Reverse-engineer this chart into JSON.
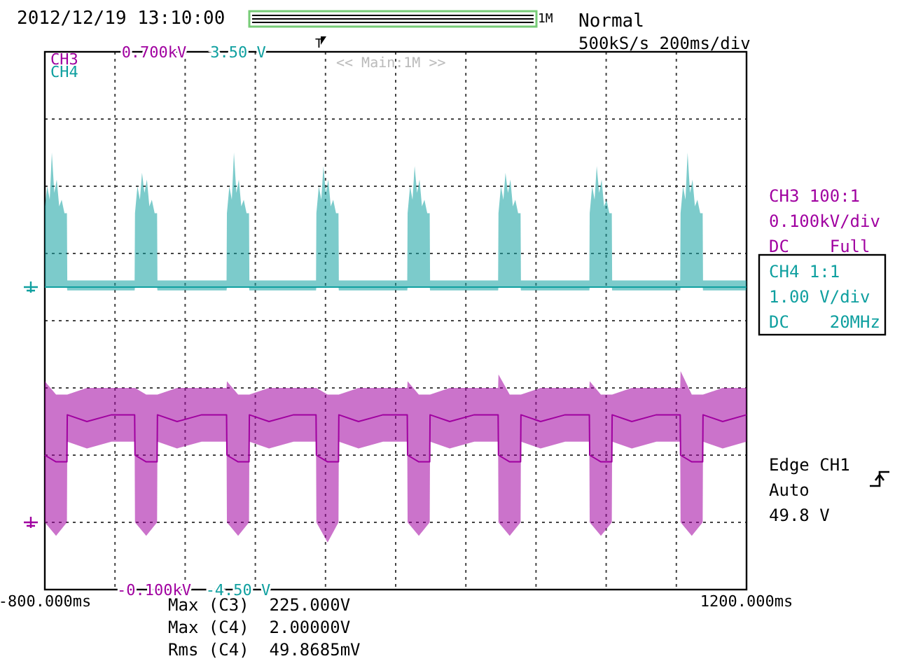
{
  "chart_data": {
    "type": "line",
    "xlim": [
      -800,
      1200
    ],
    "xticks": [
      {
        "value": -800,
        "label": "-800.000ms"
      },
      {
        "value": -600,
        "label": null
      },
      {
        "value": -400,
        "label": null
      },
      {
        "value": -200,
        "label": null
      },
      {
        "value": 0,
        "label": null
      },
      {
        "value": 200,
        "label": null
      },
      {
        "value": 400,
        "label": null
      },
      {
        "value": 600,
        "label": null
      },
      {
        "value": 800,
        "label": null
      },
      {
        "value": 1000,
        "label": null
      },
      {
        "value": 1200,
        "label": "1200.000ms"
      }
    ],
    "ylim": [
      -4.5,
      3.5
    ],
    "yticks": [
      {
        "value": -4.5,
        "label": "-4.50 V"
      },
      {
        "value": -3.5,
        "label": null
      },
      {
        "value": -2.5,
        "label": null
      },
      {
        "value": -1.5,
        "label": null
      },
      {
        "value": -0.5,
        "label": null
      },
      {
        "value": 0.5,
        "label": null
      },
      {
        "value": 1.5,
        "label": null
      },
      {
        "value": 2.5,
        "label": null
      },
      {
        "value": 3.5,
        "label": "3.50 V"
      }
    ],
    "y2lim": [
      -0.1,
      0.7
    ],
    "y2ticks": [
      {
        "value": -0.1,
        "label": "-0.100kV"
      },
      {
        "value": 0.7,
        "label": "0.700kV"
      }
    ],
    "grid": true,
    "legend": "top left",
    "marker": "none",
    "line_style": "solid",
    "series": [
      {
        "name": "CH3",
        "color": "#a000a0",
        "axis": "y2",
        "x": [
          -800,
          -768,
          -737,
          -736,
          -680,
          -610,
          -544,
          -543,
          -511,
          -480,
          -479,
          -423,
          -353,
          -282,
          -281,
          -249,
          -218,
          -217,
          -161,
          -91,
          -27,
          -26,
          6,
          37,
          38,
          94,
          164,
          233,
          234,
          266,
          297,
          298,
          354,
          424,
          492,
          493,
          525,
          556,
          557,
          613,
          683,
          752,
          753,
          785,
          816,
          817,
          873,
          943,
          1011,
          1012,
          1044,
          1075,
          1076,
          1132,
          1200
        ],
        "values": [
          0.1,
          0.09,
          0.09,
          0.16,
          0.15,
          0.16,
          0.16,
          0.1,
          0.09,
          0.09,
          0.16,
          0.15,
          0.16,
          0.16,
          0.1,
          0.09,
          0.09,
          0.16,
          0.15,
          0.16,
          0.16,
          0.1,
          0.09,
          0.09,
          0.16,
          0.15,
          0.16,
          0.16,
          0.1,
          0.09,
          0.09,
          0.16,
          0.15,
          0.16,
          0.16,
          0.1,
          0.09,
          0.09,
          0.16,
          0.15,
          0.16,
          0.16,
          0.1,
          0.09,
          0.09,
          0.16,
          0.15,
          0.16,
          0.16,
          0.1,
          0.09,
          0.09,
          0.16,
          0.15,
          0.16
        ],
        "lower": [
          0,
          -0.02,
          0,
          0.12,
          0.11,
          0.12,
          0.12,
          0,
          -0.02,
          0,
          0.12,
          0.11,
          0.12,
          0.12,
          0,
          -0.02,
          0,
          0.12,
          0.11,
          0.12,
          0.12,
          0,
          -0.03,
          0,
          0.12,
          0.11,
          0.12,
          0.12,
          0,
          -0.02,
          0,
          0.12,
          0.11,
          0.12,
          0.12,
          0,
          -0.02,
          0,
          0.12,
          0.11,
          0.12,
          0.12,
          0,
          -0.02,
          0,
          0.12,
          0.11,
          0.12,
          0.12,
          0,
          -0.02,
          0,
          0.12,
          0.11,
          0.12
        ],
        "upper": [
          0.21,
          0.19,
          0.19,
          0.19,
          0.2,
          0.2,
          0.2,
          0.2,
          0.19,
          0.19,
          0.19,
          0.2,
          0.2,
          0.2,
          0.21,
          0.19,
          0.19,
          0.19,
          0.2,
          0.2,
          0.2,
          0.2,
          0.19,
          0.19,
          0.19,
          0.2,
          0.2,
          0.2,
          0.21,
          0.19,
          0.19,
          0.19,
          0.2,
          0.2,
          0.2,
          0.22,
          0.19,
          0.19,
          0.19,
          0.2,
          0.2,
          0.2,
          0.21,
          0.19,
          0.19,
          0.19,
          0.2,
          0.2,
          0.2,
          0.225,
          0.19,
          0.19,
          0.19,
          0.2,
          0.2
        ]
      },
      {
        "name": "CH4",
        "color": "#10a0a0",
        "axis": "y",
        "x": [
          -800,
          -793,
          -786,
          -780,
          -773,
          -766,
          -759,
          -752,
          -744,
          -737,
          -736,
          -640,
          -544,
          -543,
          -536,
          -529,
          -523,
          -516,
          -509,
          -502,
          -495,
          -487,
          -480,
          -479,
          -380,
          -282,
          -281,
          -274,
          -267,
          -261,
          -254,
          -247,
          -240,
          -233,
          -225,
          -218,
          -217,
          -120,
          -27,
          -26,
          -19,
          -12,
          -6,
          1,
          8,
          15,
          22,
          30,
          37,
          38,
          140,
          233,
          234,
          241,
          248,
          254,
          261,
          268,
          275,
          282,
          290,
          297,
          298,
          400,
          492,
          493,
          500,
          507,
          513,
          520,
          527,
          534,
          541,
          549,
          556,
          557,
          660,
          752,
          753,
          760,
          767,
          773,
          780,
          787,
          794,
          801,
          809,
          816,
          817,
          920,
          1011,
          1012,
          1019,
          1026,
          1032,
          1039,
          1046,
          1053,
          1060,
          1068,
          1075,
          1076,
          1140,
          1200
        ],
        "values": [
          0,
          0,
          0,
          0,
          0,
          0,
          0,
          0,
          0,
          0,
          0,
          0,
          0,
          0,
          0,
          0,
          0,
          0,
          0,
          0,
          0,
          0,
          0,
          0,
          0,
          0,
          0,
          0,
          0,
          0,
          0,
          0,
          0,
          0,
          0,
          0,
          0,
          0,
          0,
          0,
          0,
          0,
          0,
          0,
          0,
          0,
          0,
          0,
          0,
          0,
          0,
          0,
          0,
          0,
          0,
          0,
          0,
          0,
          0,
          0,
          0,
          0,
          0,
          0,
          0,
          0,
          0,
          0,
          0,
          0,
          0,
          0,
          0,
          0,
          0,
          0,
          0,
          0,
          0,
          0,
          0,
          0,
          0,
          0,
          0,
          0,
          0,
          0,
          0,
          0,
          0,
          0,
          0,
          0,
          0,
          0,
          0,
          0,
          0,
          0,
          0,
          0,
          0,
          0
        ],
        "lower": [
          0,
          0,
          0,
          0,
          0,
          0,
          0,
          0,
          0,
          0,
          -0.05,
          -0.05,
          -0.05,
          0,
          0,
          0,
          0,
          0,
          0,
          0,
          0,
          0,
          0,
          -0.05,
          -0.05,
          -0.05,
          0,
          0,
          0,
          0,
          0,
          0,
          0,
          0,
          0,
          0,
          -0.05,
          -0.05,
          -0.05,
          0,
          0,
          0,
          0,
          0,
          0,
          0,
          0,
          0,
          0,
          -0.05,
          -0.05,
          -0.05,
          0,
          0,
          0,
          0,
          0,
          0,
          0,
          0,
          0,
          0,
          -0.05,
          -0.05,
          -0.05,
          0,
          0,
          0,
          0,
          0,
          0,
          0,
          0,
          0,
          0,
          -0.05,
          -0.05,
          -0.05,
          0,
          0,
          0,
          0,
          0,
          0,
          0,
          0,
          0,
          0,
          -0.05,
          -0.05,
          -0.05,
          0,
          0,
          0,
          0,
          0,
          0,
          0,
          0,
          0,
          0,
          -0.05,
          -0.05,
          -0.05
        ],
        "upper": [
          1.2,
          1.5,
          1.3,
          2.0,
          1.4,
          1.6,
          1.2,
          1.3,
          1.1,
          1.1,
          0.1,
          0.1,
          0.1,
          1.1,
          1.5,
          1.3,
          1.7,
          1.4,
          1.6,
          1.2,
          1.3,
          1.1,
          1.1,
          0.1,
          0.1,
          0.1,
          1.1,
          1.5,
          1.3,
          2.0,
          1.4,
          1.6,
          1.2,
          1.3,
          1.1,
          1.1,
          0.1,
          0.1,
          0.1,
          1.1,
          1.5,
          1.3,
          1.8,
          1.4,
          1.6,
          1.2,
          1.3,
          1.1,
          1.1,
          0.1,
          0.1,
          0.1,
          1.1,
          1.5,
          1.3,
          1.8,
          1.4,
          1.6,
          1.2,
          1.3,
          1.1,
          1.1,
          0.1,
          0.1,
          0.1,
          1.1,
          1.5,
          1.3,
          1.7,
          1.4,
          1.6,
          1.2,
          1.3,
          1.1,
          1.1,
          0.1,
          0.1,
          0.1,
          1.1,
          1.5,
          1.3,
          1.8,
          1.4,
          1.6,
          1.2,
          1.3,
          1.1,
          1.1,
          0.1,
          0.1,
          0.1,
          1.1,
          1.5,
          1.3,
          2.0,
          1.4,
          1.6,
          1.2,
          1.3,
          1.1,
          1.1,
          0.1,
          0.1,
          0.1
        ]
      }
    ],
    "annotations": [
      "2012/12/19 13:10:00",
      "Normal",
      "500kS/s 200ms/div",
      "1M",
      "T",
      "<< Main:1M >>",
      "CH3 100:1",
      "0.100kV/div",
      "DC    Full",
      "CH4 1:1",
      "1.00 V/div",
      "DC    20MHz",
      "Edge CH1",
      "Auto",
      "49.8 V",
      "Max (C3)  225.000V",
      "Max (C4)  2.00000V",
      "Rms (C4)  49.8685mV"
    ]
  }
}
